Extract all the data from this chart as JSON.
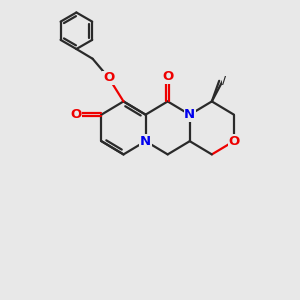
{
  "bg_color": "#e8e8e8",
  "bond_color": "#2a2a2a",
  "N_color": "#0000ee",
  "O_color": "#ee0000",
  "line_width": 1.6,
  "font_size": 9.5,
  "xlim": [
    0,
    10
  ],
  "ylim": [
    0,
    10
  ]
}
